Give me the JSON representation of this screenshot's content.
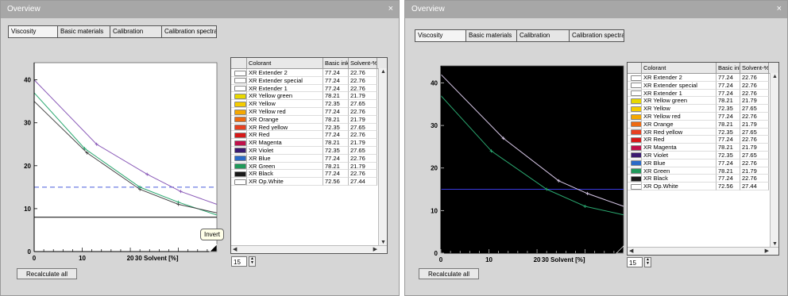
{
  "window": {
    "title": "Overview",
    "close": "×"
  },
  "tabs": [
    "Viscosity",
    "Basic materials",
    "Calibration",
    "Calibration spectra"
  ],
  "table": {
    "headers": [
      "Colorant",
      "Basic ink-",
      "Solvent-%"
    ],
    "rows": [
      {
        "name": "XR Extender 2",
        "basic": "77.24",
        "solvent": "22.76",
        "color": "#ffffff"
      },
      {
        "name": "XR Extender special",
        "basic": "77.24",
        "solvent": "22.76",
        "color": "#ffffff"
      },
      {
        "name": "XR Extender 1",
        "basic": "77.24",
        "solvent": "22.76",
        "color": "#ffffff"
      },
      {
        "name": "XR Yellow green",
        "basic": "78.21",
        "solvent": "21.79",
        "color": "#e8d800"
      },
      {
        "name": "XR Yellow",
        "basic": "72.35",
        "solvent": "27.65",
        "color": "#f5cc00"
      },
      {
        "name": "XR Yellow red",
        "basic": "77.24",
        "solvent": "22.76",
        "color": "#f5a800"
      },
      {
        "name": "XR Orange",
        "basic": "78.21",
        "solvent": "21.79",
        "color": "#ee6a10"
      },
      {
        "name": "XR Red yellow",
        "basic": "72.35",
        "solvent": "27.65",
        "color": "#e84020"
      },
      {
        "name": "XR Red",
        "basic": "77.24",
        "solvent": "22.76",
        "color": "#d81818"
      },
      {
        "name": "XR Magenta",
        "basic": "78.21",
        "solvent": "21.79",
        "color": "#c0104a"
      },
      {
        "name": "XR Violet",
        "basic": "72.35",
        "solvent": "27.65",
        "color": "#3a1a70"
      },
      {
        "name": "XR Blue",
        "basic": "77.24",
        "solvent": "22.76",
        "color": "#2a6ac8"
      },
      {
        "name": "XR Green",
        "basic": "78.21",
        "solvent": "21.79",
        "color": "#1f9a5a"
      },
      {
        "name": "XR Black",
        "basic": "77.24",
        "solvent": "22.76",
        "color": "#1a1a1a"
      },
      {
        "name": "XR Op.White",
        "basic": "72.56",
        "solvent": "27.44",
        "color": "#ffffff"
      }
    ]
  },
  "spinner_value": "15",
  "recalculate_label": "Recalculate all",
  "tooltip": "Invert",
  "chart_data": [
    {
      "type": "line",
      "background": "white",
      "xlabel": "Solvent [%]",
      "xlim": [
        0,
        38
      ],
      "ylim": [
        0,
        44
      ],
      "xticks": [
        0,
        10,
        20,
        30
      ],
      "yticks": [
        0,
        10,
        20,
        30,
        40
      ],
      "reference_lines": [
        {
          "y": 15,
          "color": "#4a5cdc",
          "style": "dashed"
        },
        {
          "y": 8,
          "color": "#000000",
          "style": "solid"
        }
      ],
      "series": [
        {
          "color": "#8a5ab8",
          "points": [
            [
              0,
              40
            ],
            [
              13,
              25
            ],
            [
              23.5,
              18
            ],
            [
              30.5,
              14
            ],
            [
              38,
              11
            ]
          ]
        },
        {
          "color": "#2aa870",
          "points": [
            [
              0,
              37
            ],
            [
              10.5,
              24
            ],
            [
              22,
              15
            ],
            [
              30,
              11.5
            ],
            [
              38,
              8.5
            ]
          ]
        },
        {
          "color": "#444444",
          "points": [
            [
              0,
              35
            ],
            [
              11,
              23
            ],
            [
              22,
              14.5
            ],
            [
              30,
              11
            ],
            [
              38,
              9
            ]
          ]
        }
      ]
    },
    {
      "type": "line",
      "background": "black",
      "xlabel": "Solvent [%]",
      "xlim": [
        0,
        38
      ],
      "ylim": [
        0,
        44
      ],
      "xticks": [
        0,
        10,
        20,
        30
      ],
      "yticks": [
        0,
        10,
        20,
        30,
        40
      ],
      "reference_lines": [
        {
          "y": 15,
          "color": "#3a3ae0",
          "style": "solid"
        }
      ],
      "series": [
        {
          "color": "#d8c8e8",
          "points": [
            [
              0,
              42
            ],
            [
              13,
              27
            ],
            [
              24.5,
              17
            ],
            [
              30.5,
              14
            ],
            [
              38,
              11
            ]
          ]
        },
        {
          "color": "#2aa870",
          "points": [
            [
              0,
              37
            ],
            [
              10.5,
              24
            ],
            [
              22,
              15
            ],
            [
              30,
              11
            ],
            [
              38,
              9
            ]
          ]
        }
      ]
    }
  ]
}
